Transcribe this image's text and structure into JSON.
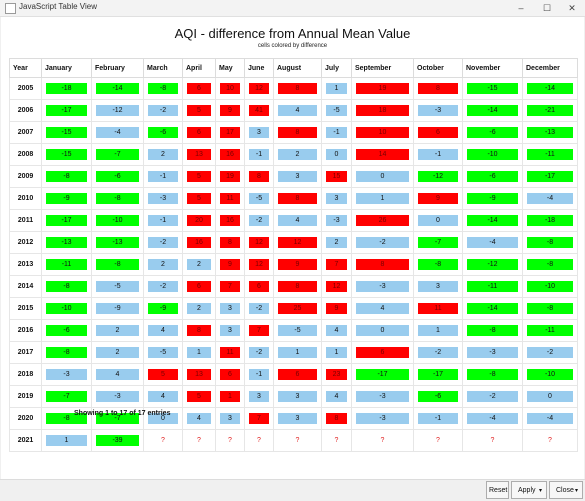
{
  "window": {
    "title": "JavaScript Table View",
    "minimize": "–",
    "maximize": "☐",
    "close": "✕"
  },
  "heading": "AQI - difference from Annual Mean Value",
  "subheading": "cells colored by difference",
  "columns": [
    "Year",
    "January",
    "February",
    "March",
    "April",
    "May",
    "June",
    "August",
    "July",
    "September",
    "October",
    "November",
    "December"
  ],
  "rows": [
    {
      "year": "2005",
      "cells": [
        {
          "v": "-18",
          "c": "green"
        },
        {
          "v": "-14",
          "c": "green"
        },
        {
          "v": "-8",
          "c": "green"
        },
        {
          "v": "6",
          "c": "red"
        },
        {
          "v": "10",
          "c": "red"
        },
        {
          "v": "12",
          "c": "red"
        },
        {
          "v": "8",
          "c": "red"
        },
        {
          "v": "1",
          "c": "blue"
        },
        {
          "v": "19",
          "c": "red"
        },
        {
          "v": "8",
          "c": "red"
        },
        {
          "v": "-15",
          "c": "green"
        },
        {
          "v": "-14",
          "c": "green"
        }
      ]
    },
    {
      "year": "2006",
      "cells": [
        {
          "v": "-17",
          "c": "green"
        },
        {
          "v": "-12",
          "c": "blue"
        },
        {
          "v": "-2",
          "c": "blue"
        },
        {
          "v": "5",
          "c": "red"
        },
        {
          "v": "9",
          "c": "red"
        },
        {
          "v": "41",
          "c": "red"
        },
        {
          "v": "4",
          "c": "blue"
        },
        {
          "v": "-5",
          "c": "blue"
        },
        {
          "v": "18",
          "c": "red"
        },
        {
          "v": "-3",
          "c": "blue"
        },
        {
          "v": "-14",
          "c": "green"
        },
        {
          "v": "-21",
          "c": "green"
        }
      ]
    },
    {
      "year": "2007",
      "cells": [
        {
          "v": "-15",
          "c": "green"
        },
        {
          "v": "-4",
          "c": "blue"
        },
        {
          "v": "-6",
          "c": "green"
        },
        {
          "v": "6",
          "c": "red"
        },
        {
          "v": "17",
          "c": "red"
        },
        {
          "v": "3",
          "c": "blue"
        },
        {
          "v": "8",
          "c": "red"
        },
        {
          "v": "-1",
          "c": "blue"
        },
        {
          "v": "10",
          "c": "red"
        },
        {
          "v": "6",
          "c": "red"
        },
        {
          "v": "-6",
          "c": "green"
        },
        {
          "v": "-13",
          "c": "green"
        }
      ]
    },
    {
      "year": "2008",
      "cells": [
        {
          "v": "-15",
          "c": "green"
        },
        {
          "v": "-7",
          "c": "green"
        },
        {
          "v": "2",
          "c": "blue"
        },
        {
          "v": "13",
          "c": "red"
        },
        {
          "v": "16",
          "c": "red"
        },
        {
          "v": "-1",
          "c": "blue"
        },
        {
          "v": "2",
          "c": "blue"
        },
        {
          "v": "0",
          "c": "blue"
        },
        {
          "v": "14",
          "c": "red"
        },
        {
          "v": "-1",
          "c": "blue"
        },
        {
          "v": "-10",
          "c": "green"
        },
        {
          "v": "-11",
          "c": "green"
        }
      ]
    },
    {
      "year": "2009",
      "cells": [
        {
          "v": "-8",
          "c": "green"
        },
        {
          "v": "-6",
          "c": "green"
        },
        {
          "v": "-1",
          "c": "blue"
        },
        {
          "v": "5",
          "c": "red"
        },
        {
          "v": "19",
          "c": "red"
        },
        {
          "v": "8",
          "c": "red"
        },
        {
          "v": "3",
          "c": "blue"
        },
        {
          "v": "15",
          "c": "red"
        },
        {
          "v": "0",
          "c": "blue"
        },
        {
          "v": "-12",
          "c": "green"
        },
        {
          "v": "-6",
          "c": "green"
        },
        {
          "v": "-17",
          "c": "green"
        }
      ]
    },
    {
      "year": "2010",
      "cells": [
        {
          "v": "-9",
          "c": "green"
        },
        {
          "v": "-8",
          "c": "green"
        },
        {
          "v": "-3",
          "c": "blue"
        },
        {
          "v": "5",
          "c": "red"
        },
        {
          "v": "11",
          "c": "red"
        },
        {
          "v": "-5",
          "c": "blue"
        },
        {
          "v": "8",
          "c": "red"
        },
        {
          "v": "3",
          "c": "blue"
        },
        {
          "v": "1",
          "c": "blue"
        },
        {
          "v": "9",
          "c": "red"
        },
        {
          "v": "-9",
          "c": "green"
        },
        {
          "v": "-4",
          "c": "blue"
        }
      ]
    },
    {
      "year": "2011",
      "cells": [
        {
          "v": "-17",
          "c": "green"
        },
        {
          "v": "-10",
          "c": "green"
        },
        {
          "v": "-1",
          "c": "blue"
        },
        {
          "v": "20",
          "c": "red"
        },
        {
          "v": "16",
          "c": "red"
        },
        {
          "v": "-2",
          "c": "blue"
        },
        {
          "v": "4",
          "c": "blue"
        },
        {
          "v": "-3",
          "c": "blue"
        },
        {
          "v": "26",
          "c": "red"
        },
        {
          "v": "0",
          "c": "blue"
        },
        {
          "v": "-14",
          "c": "green"
        },
        {
          "v": "-18",
          "c": "green"
        }
      ]
    },
    {
      "year": "2012",
      "cells": [
        {
          "v": "-13",
          "c": "green"
        },
        {
          "v": "-13",
          "c": "green"
        },
        {
          "v": "-2",
          "c": "blue"
        },
        {
          "v": "16",
          "c": "red"
        },
        {
          "v": "8",
          "c": "red"
        },
        {
          "v": "12",
          "c": "red"
        },
        {
          "v": "12",
          "c": "red"
        },
        {
          "v": "2",
          "c": "blue"
        },
        {
          "v": "-2",
          "c": "blue"
        },
        {
          "v": "-7",
          "c": "green"
        },
        {
          "v": "-4",
          "c": "blue"
        },
        {
          "v": "-8",
          "c": "green"
        }
      ]
    },
    {
      "year": "2013",
      "cells": [
        {
          "v": "-11",
          "c": "green"
        },
        {
          "v": "-8",
          "c": "green"
        },
        {
          "v": "2",
          "c": "blue"
        },
        {
          "v": "2",
          "c": "blue"
        },
        {
          "v": "9",
          "c": "red"
        },
        {
          "v": "12",
          "c": "red"
        },
        {
          "v": "9",
          "c": "red"
        },
        {
          "v": "7",
          "c": "red"
        },
        {
          "v": "8",
          "c": "red"
        },
        {
          "v": "-8",
          "c": "green"
        },
        {
          "v": "-12",
          "c": "green"
        },
        {
          "v": "-8",
          "c": "green"
        }
      ]
    },
    {
      "year": "2014",
      "cells": [
        {
          "v": "-8",
          "c": "green"
        },
        {
          "v": "-5",
          "c": "blue"
        },
        {
          "v": "-2",
          "c": "blue"
        },
        {
          "v": "6",
          "c": "red"
        },
        {
          "v": "7",
          "c": "red"
        },
        {
          "v": "6",
          "c": "red"
        },
        {
          "v": "8",
          "c": "red"
        },
        {
          "v": "12",
          "c": "red"
        },
        {
          "v": "-3",
          "c": "blue"
        },
        {
          "v": "3",
          "c": "blue"
        },
        {
          "v": "-11",
          "c": "green"
        },
        {
          "v": "-10",
          "c": "green"
        }
      ]
    },
    {
      "year": "2015",
      "cells": [
        {
          "v": "-10",
          "c": "green"
        },
        {
          "v": "-9",
          "c": "blue"
        },
        {
          "v": "-9",
          "c": "green"
        },
        {
          "v": "2",
          "c": "blue"
        },
        {
          "v": "3",
          "c": "blue"
        },
        {
          "v": "-2",
          "c": "blue"
        },
        {
          "v": "25",
          "c": "red"
        },
        {
          "v": "9",
          "c": "red"
        },
        {
          "v": "4",
          "c": "blue"
        },
        {
          "v": "11",
          "c": "red"
        },
        {
          "v": "-14",
          "c": "green"
        },
        {
          "v": "-8",
          "c": "green"
        }
      ]
    },
    {
      "year": "2016",
      "cells": [
        {
          "v": "-6",
          "c": "green"
        },
        {
          "v": "2",
          "c": "blue"
        },
        {
          "v": "4",
          "c": "blue"
        },
        {
          "v": "8",
          "c": "red"
        },
        {
          "v": "3",
          "c": "blue"
        },
        {
          "v": "7",
          "c": "red"
        },
        {
          "v": "-5",
          "c": "blue"
        },
        {
          "v": "4",
          "c": "blue"
        },
        {
          "v": "0",
          "c": "blue"
        },
        {
          "v": "1",
          "c": "blue"
        },
        {
          "v": "-8",
          "c": "green"
        },
        {
          "v": "-11",
          "c": "green"
        }
      ]
    },
    {
      "year": "2017",
      "cells": [
        {
          "v": "-8",
          "c": "green"
        },
        {
          "v": "2",
          "c": "blue"
        },
        {
          "v": "-5",
          "c": "blue"
        },
        {
          "v": "1",
          "c": "blue"
        },
        {
          "v": "11",
          "c": "red"
        },
        {
          "v": "-2",
          "c": "blue"
        },
        {
          "v": "1",
          "c": "blue"
        },
        {
          "v": "1",
          "c": "blue"
        },
        {
          "v": "6",
          "c": "red"
        },
        {
          "v": "-2",
          "c": "blue"
        },
        {
          "v": "-3",
          "c": "blue"
        },
        {
          "v": "-2",
          "c": "blue"
        }
      ]
    },
    {
      "year": "2018",
      "cells": [
        {
          "v": "-3",
          "c": "blue"
        },
        {
          "v": "4",
          "c": "blue"
        },
        {
          "v": "5",
          "c": "red"
        },
        {
          "v": "13",
          "c": "red"
        },
        {
          "v": "6",
          "c": "red"
        },
        {
          "v": "-1",
          "c": "blue"
        },
        {
          "v": "6",
          "c": "red"
        },
        {
          "v": "23",
          "c": "red"
        },
        {
          "v": "-17",
          "c": "green"
        },
        {
          "v": "-17",
          "c": "green"
        },
        {
          "v": "-8",
          "c": "green"
        },
        {
          "v": "-10",
          "c": "green"
        }
      ]
    },
    {
      "year": "2019",
      "cells": [
        {
          "v": "-7",
          "c": "green"
        },
        {
          "v": "-3",
          "c": "blue"
        },
        {
          "v": "4",
          "c": "blue"
        },
        {
          "v": "5",
          "c": "red"
        },
        {
          "v": "1",
          "c": "red"
        },
        {
          "v": "3",
          "c": "blue"
        },
        {
          "v": "3",
          "c": "blue"
        },
        {
          "v": "4",
          "c": "blue"
        },
        {
          "v": "-3",
          "c": "blue"
        },
        {
          "v": "-6",
          "c": "green"
        },
        {
          "v": "-2",
          "c": "blue"
        },
        {
          "v": "0",
          "c": "blue"
        }
      ]
    },
    {
      "year": "2020",
      "cells": [
        {
          "v": "-8",
          "c": "green"
        },
        {
          "v": "-7",
          "c": "green"
        },
        {
          "v": "0",
          "c": "blue"
        },
        {
          "v": "4",
          "c": "blue"
        },
        {
          "v": "3",
          "c": "blue"
        },
        {
          "v": "7",
          "c": "red"
        },
        {
          "v": "3",
          "c": "blue"
        },
        {
          "v": "8",
          "c": "red"
        },
        {
          "v": "-3",
          "c": "blue"
        },
        {
          "v": "-1",
          "c": "blue"
        },
        {
          "v": "-4",
          "c": "blue"
        },
        {
          "v": "-4",
          "c": "blue"
        }
      ]
    },
    {
      "year": "2021",
      "cells": [
        {
          "v": "1",
          "c": "blue"
        },
        {
          "v": "-39",
          "c": "green"
        },
        {
          "v": "?",
          "c": "none"
        },
        {
          "v": "?",
          "c": "none"
        },
        {
          "v": "?",
          "c": "none"
        },
        {
          "v": "?",
          "c": "none"
        },
        {
          "v": "?",
          "c": "none"
        },
        {
          "v": "?",
          "c": "none"
        },
        {
          "v": "?",
          "c": "none"
        },
        {
          "v": "?",
          "c": "none"
        },
        {
          "v": "?",
          "c": "none"
        },
        {
          "v": "?",
          "c": "none"
        }
      ]
    }
  ],
  "footer": "Showing 1 to 17 of 17 entries",
  "buttons": {
    "reset": "Reset",
    "apply": "Apply",
    "close": "Close",
    "dropdown_arrow": "▾"
  },
  "colors": {
    "positive": "#ff0000",
    "negative": "#00ff00",
    "near_zero": "#99ccee"
  }
}
